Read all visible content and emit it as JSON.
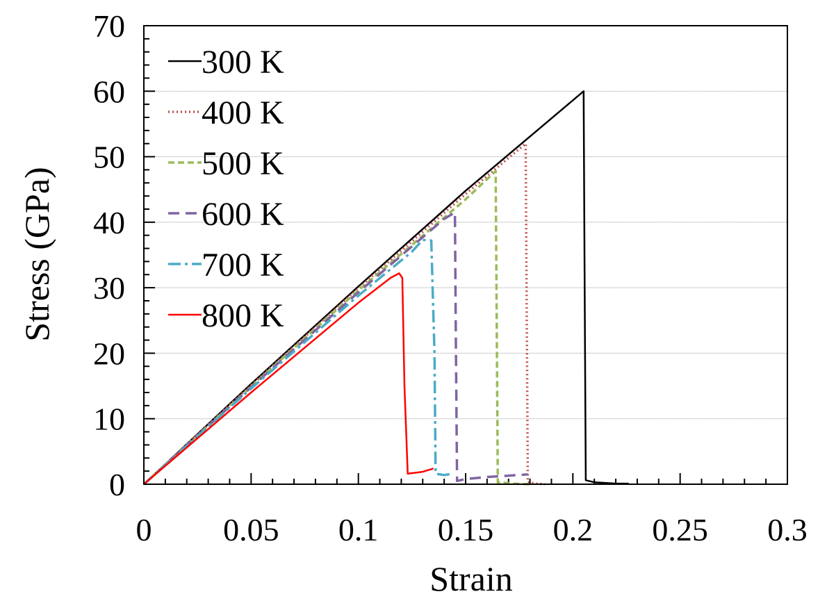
{
  "chart_data": {
    "type": "line",
    "title": "",
    "xlabel": "Strain",
    "ylabel": "Stress (GPa)",
    "xlim": [
      0,
      0.3
    ],
    "ylim": [
      0,
      70
    ],
    "xticks": [
      {
        "value": 0,
        "label": "0"
      },
      {
        "value": 0.05,
        "label": "0.05"
      },
      {
        "value": 0.1,
        "label": "0.1"
      },
      {
        "value": 0.15,
        "label": "0.15"
      },
      {
        "value": 0.2,
        "label": "0.2"
      },
      {
        "value": 0.25,
        "label": "0.25"
      },
      {
        "value": 0.3,
        "label": "0.3"
      }
    ],
    "yticks": [
      {
        "value": 0,
        "label": "0"
      },
      {
        "value": 10,
        "label": "10"
      },
      {
        "value": 20,
        "label": "20"
      },
      {
        "value": 30,
        "label": "30"
      },
      {
        "value": 40,
        "label": "40"
      },
      {
        "value": 50,
        "label": "50"
      },
      {
        "value": 60,
        "label": "60"
      },
      {
        "value": 70,
        "label": "70"
      }
    ],
    "grid": "horizontal major gridlines",
    "legend_position": "top-left",
    "series": [
      {
        "name": "300 K",
        "color": "#000000",
        "dash": "solid",
        "x": [
          0,
          0.05,
          0.1,
          0.15,
          0.205,
          0.2055,
          0.206,
          0.21,
          0.215,
          0.22,
          0.226
        ],
        "y": [
          0,
          15.3,
          30.2,
          44.8,
          60.0,
          30.0,
          0.6,
          0.3,
          0.2,
          0.1,
          0.1
        ]
      },
      {
        "name": "400 K",
        "color": "#C0504D",
        "dash": "dot",
        "x": [
          0,
          0.05,
          0.1,
          0.15,
          0.178,
          0.1785,
          0.179,
          0.183,
          0.187
        ],
        "y": [
          0,
          15.1,
          29.9,
          44.3,
          52.0,
          25.0,
          0.3,
          0.1,
          0.0
        ]
      },
      {
        "name": "500 K",
        "color": "#9BBB59",
        "dash": "dash",
        "x": [
          0,
          0.05,
          0.1,
          0.15,
          0.164,
          0.1645,
          0.165,
          0.172,
          0.18
        ],
        "y": [
          0,
          14.9,
          29.6,
          43.5,
          47.8,
          24.0,
          0.3,
          0.1,
          0.0
        ]
      },
      {
        "name": "600 K",
        "color": "#8064A2",
        "dash": "longdash",
        "x": [
          0,
          0.05,
          0.1,
          0.14,
          0.145,
          0.1455,
          0.146,
          0.15,
          0.16,
          0.17,
          0.179
        ],
        "y": [
          0,
          14.8,
          29.3,
          40.5,
          41.5,
          20.0,
          0.5,
          0.8,
          1.1,
          1.3,
          1.5
        ]
      },
      {
        "name": "700 K",
        "color": "#4BACC6",
        "dash": "dashdot",
        "x": [
          0,
          0.05,
          0.1,
          0.125,
          0.13,
          0.134,
          0.1355,
          0.136,
          0.14,
          0.144
        ],
        "y": [
          0,
          14.6,
          28.8,
          35.5,
          37.3,
          37.2,
          20.0,
          1.6,
          1.4,
          1.6
        ]
      },
      {
        "name": "800 K",
        "color": "#FF0000",
        "dash": "solid",
        "x": [
          0,
          0.05,
          0.1,
          0.115,
          0.119,
          0.1205,
          0.1215,
          0.123,
          0.13,
          0.135
        ],
        "y": [
          0,
          14.0,
          27.7,
          31.5,
          32.2,
          31.5,
          15.0,
          1.6,
          1.9,
          2.4
        ]
      }
    ]
  }
}
